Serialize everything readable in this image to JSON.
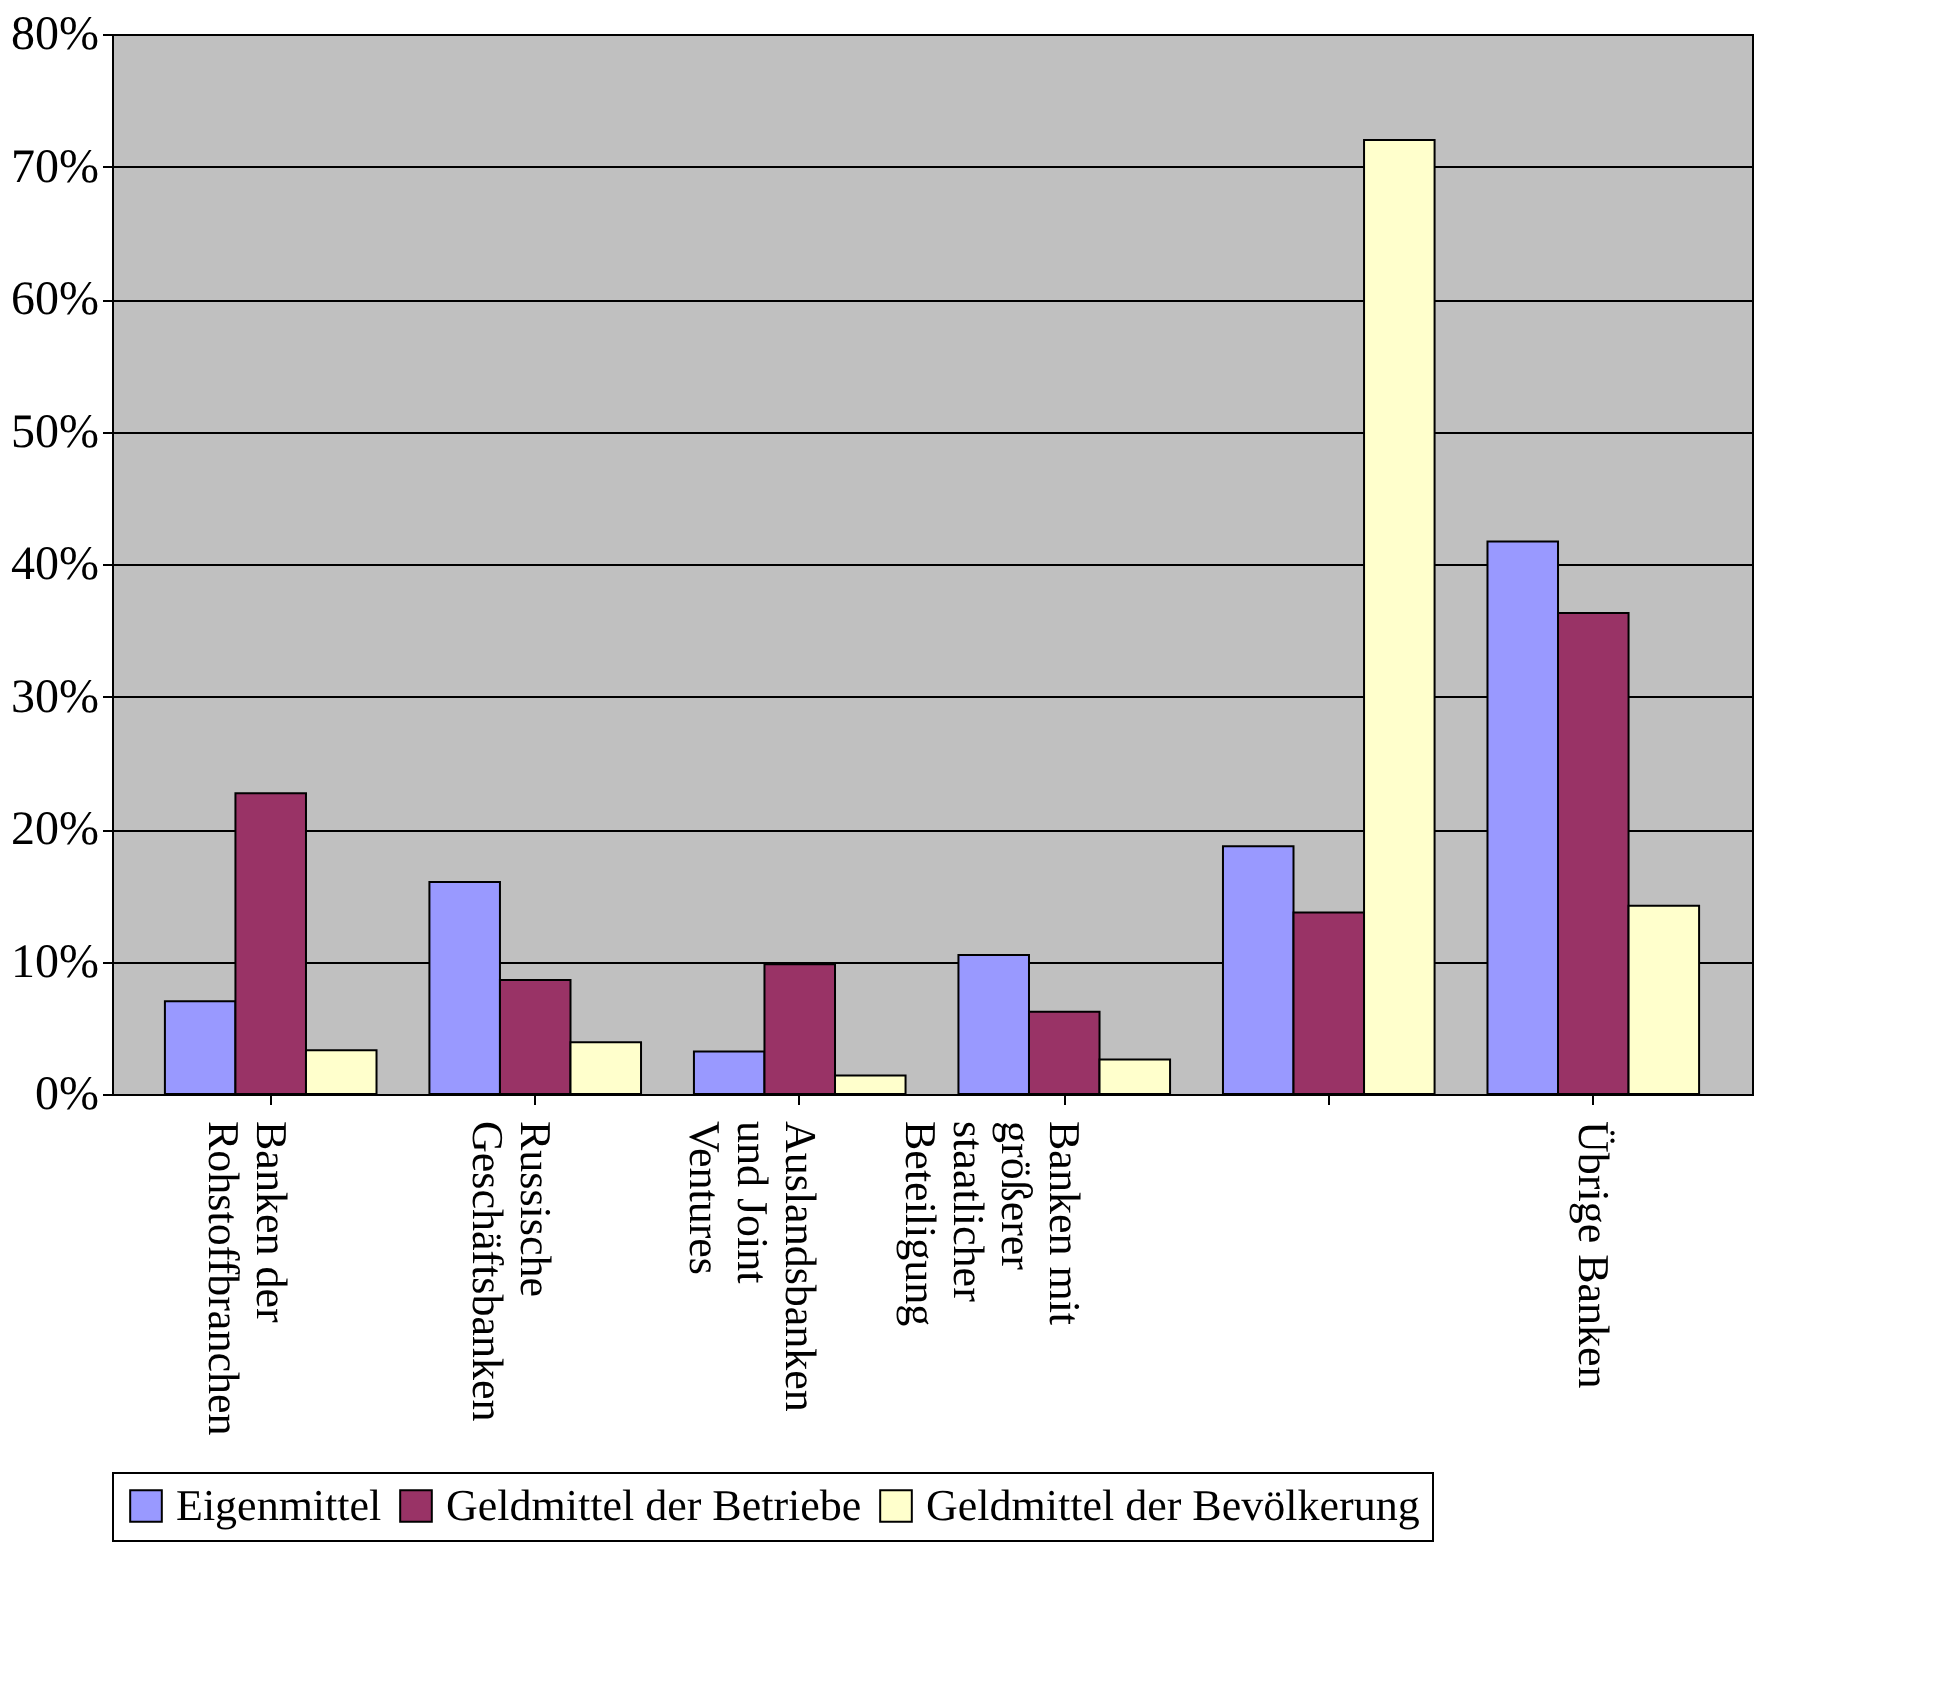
{
  "chart_data": {
    "type": "bar",
    "categories": [
      "Banken der\nRohstoffbranchen",
      "Russische\nGeschäftsbanken",
      "Auslandsbanken\nund Joint\nVentures",
      "Banken mit\ngrößerer\nstaatlicher\nBeteiligung",
      null,
      "Übrige Banken"
    ],
    "series": [
      {
        "name": "Eigenmittel",
        "color": "#9999ff",
        "values": [
          7,
          16,
          3.2,
          10.5,
          18.7,
          41.7
        ]
      },
      {
        "name": "Geldmittel der Betriebe",
        "color": "#993366",
        "values": [
          22.7,
          8.6,
          9.8,
          6.2,
          13.7,
          36.3
        ]
      },
      {
        "name": "Geldmittel der Bevölkerung",
        "color": "#ffffcc",
        "values": [
          3.3,
          3.9,
          1.4,
          2.6,
          72,
          14.2
        ]
      }
    ],
    "ylim": [
      0,
      80
    ],
    "yticks": [
      {
        "value": 0,
        "label": "0%"
      },
      {
        "value": 10,
        "label": "10%"
      },
      {
        "value": 20,
        "label": "20%"
      },
      {
        "value": 30,
        "label": "30%"
      },
      {
        "value": 40,
        "label": "40%"
      },
      {
        "value": 50,
        "label": "50%"
      },
      {
        "value": 60,
        "label": "60%"
      },
      {
        "value": 70,
        "label": "70%"
      },
      {
        "value": 80,
        "label": "80%"
      }
    ],
    "grid": "y",
    "legend": "bottom"
  }
}
